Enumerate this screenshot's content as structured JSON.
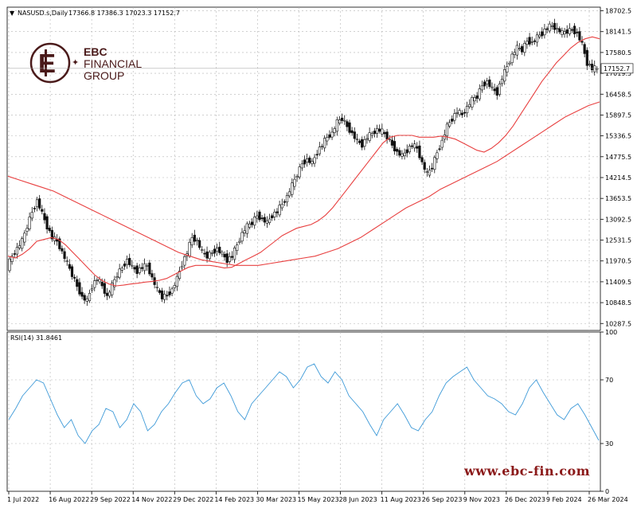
{
  "header": {
    "symbol_label": "NASUSD.s,Daily",
    "ohlc_label": "17366.8 17386.3 17023.3 17152.7",
    "rsi_label": "RSI(14) 31.8461"
  },
  "logo": {
    "line1": "EBC",
    "line2": "FINANCIAL",
    "line3": "GROUP",
    "color": "#4a1a1a"
  },
  "watermark": "www.ebc-fin.com",
  "chart_data": [
    {
      "type": "candlestick",
      "symbol": "NASUSD.s",
      "timeframe": "Daily",
      "ylim": [
        10100,
        18800
      ],
      "y_ticks": [
        "18702.5",
        "18141.5",
        "17580.5",
        "17019.5",
        "16458.5",
        "15897.5",
        "15336.5",
        "14775.5",
        "14214.5",
        "13653.5",
        "13092.5",
        "12531.5",
        "11970.5",
        "11409.5",
        "10848.5",
        "10287.5"
      ],
      "x_ticks": [
        "1 Jul 2022",
        "16 Aug 2022",
        "29 Sep 2022",
        "14 Nov 2022",
        "29 Dec 2022",
        "14 Feb 2023",
        "30 Mar 2023",
        "15 May 2023",
        "28 Jun 2023",
        "11 Aug 2023",
        "26 Sep 2023",
        "9 Nov 2023",
        "26 Dec 2023",
        "9 Feb 2024",
        "26 Mar 2024"
      ],
      "last_price": "17152.7",
      "close_series": [
        11800,
        12100,
        12300,
        12500,
        12900,
        13300,
        13600,
        13250,
        12900,
        12600,
        12500,
        12200,
        11900,
        11600,
        11300,
        11000,
        10900,
        11300,
        11500,
        11300,
        11000,
        11300,
        11600,
        11800,
        12000,
        11800,
        11700,
        11800,
        11850,
        11500,
        11200,
        11000,
        11050,
        11200,
        11500,
        11900,
        12200,
        12600,
        12500,
        12200,
        12100,
        12200,
        12300,
        12150,
        12000,
        12100,
        12400,
        12700,
        12900,
        13000,
        13200,
        13100,
        13000,
        13200,
        13300,
        13500,
        13700,
        14000,
        14300,
        14600,
        14700,
        14600,
        14900,
        15100,
        15300,
        15400,
        15700,
        15800,
        15600,
        15400,
        15200,
        15100,
        15300,
        15400,
        15500,
        15450,
        15300,
        15100,
        14900,
        14800,
        14950,
        15100,
        15000,
        14600,
        14300,
        14500,
        14900,
        15200,
        15600,
        15800,
        16000,
        15900,
        16100,
        16300,
        16400,
        16700,
        16800,
        16600,
        16500,
        16900,
        17200,
        17500,
        17700,
        17650,
        17900,
        17850,
        18000,
        18100,
        18250,
        18300,
        18200,
        18100,
        18150,
        18200,
        18100,
        17800,
        17300,
        17150
      ],
      "series": [
        {
          "name": "",
          "color": "#e84040",
          "values": [
            12100,
            12050,
            12150,
            12300,
            12500,
            12550,
            12600,
            12550,
            12400,
            12200,
            12000,
            11800,
            11600,
            11450,
            11350,
            11300,
            11320,
            11350,
            11370,
            11400,
            11420,
            11450,
            11500,
            11600,
            11700,
            11800,
            11850,
            11850,
            11850,
            11820,
            11780,
            11800,
            11900,
            12000,
            12100,
            12200,
            12350,
            12500,
            12650,
            12750,
            12850,
            12900,
            12950,
            13050,
            13200,
            13400,
            13650,
            13900,
            14150,
            14400,
            14650,
            14900,
            15150,
            15300,
            15350,
            15350,
            15350,
            15300,
            15300,
            15300,
            15330,
            15300,
            15250,
            15150,
            15050,
            14950,
            14900,
            15000,
            15150,
            15350,
            15600,
            15900,
            16200,
            16500,
            16800,
            17050,
            17300,
            17500,
            17700,
            17850,
            17950,
            18000,
            17950
          ]
        },
        {
          "name": "",
          "color": "#e84040",
          "values": [
            14250,
            14150,
            14050,
            13950,
            13850,
            13700,
            13550,
            13400,
            13250,
            13100,
            12950,
            12800,
            12650,
            12500,
            12350,
            12200,
            12100,
            12000,
            11950,
            11900,
            11850,
            11850,
            11850,
            11900,
            11950,
            12000,
            12050,
            12100,
            12200,
            12300,
            12450,
            12600,
            12800,
            13000,
            13200,
            13400,
            13550,
            13700,
            13900,
            14050,
            14200,
            14350,
            14500,
            14650,
            14850,
            15050,
            15250,
            15450,
            15650,
            15850,
            16000,
            16150,
            16250
          ]
        }
      ]
    },
    {
      "type": "line",
      "name": "RSI(14)",
      "color": "#3e9ad8",
      "ylim": [
        0,
        100
      ],
      "y_ticks": [
        "100",
        "70",
        "30",
        "0"
      ],
      "current": "31.8461",
      "values": [
        45,
        52,
        60,
        65,
        70,
        68,
        58,
        48,
        40,
        45,
        35,
        30,
        38,
        42,
        52,
        50,
        40,
        45,
        55,
        50,
        38,
        42,
        50,
        55,
        62,
        68,
        70,
        60,
        55,
        58,
        65,
        68,
        60,
        50,
        45,
        55,
        60,
        65,
        70,
        75,
        72,
        65,
        70,
        78,
        80,
        72,
        68,
        75,
        70,
        60,
        55,
        50,
        42,
        35,
        45,
        50,
        55,
        48,
        40,
        38,
        45,
        50,
        60,
        68,
        72,
        75,
        78,
        70,
        65,
        60,
        58,
        55,
        50,
        48,
        55,
        65,
        70,
        62,
        55,
        48,
        45,
        52,
        55,
        48,
        40,
        32
      ]
    }
  ]
}
